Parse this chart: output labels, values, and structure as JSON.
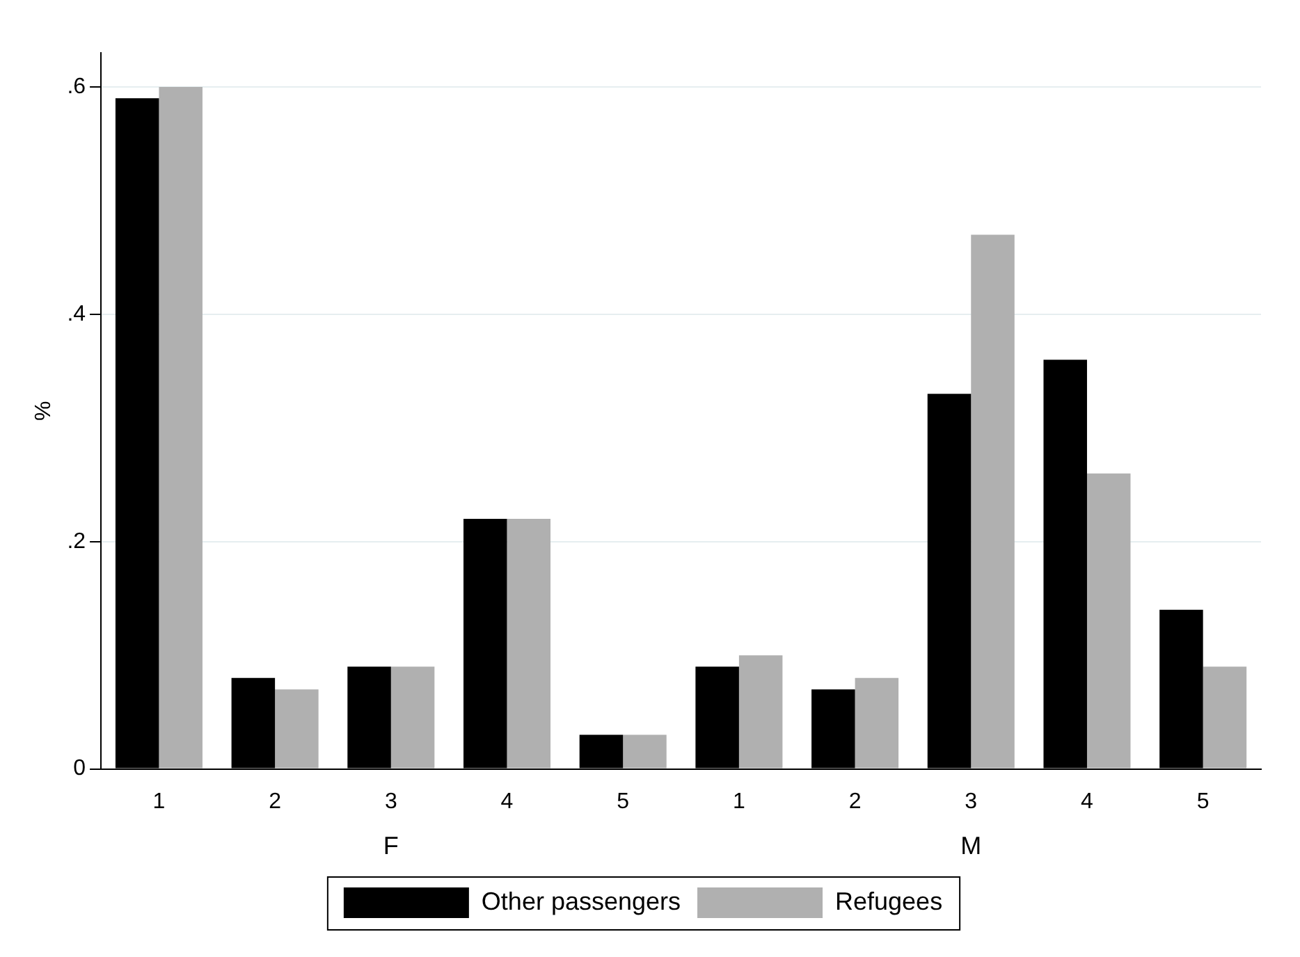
{
  "chart_data": {
    "type": "bar",
    "ylabel": "%",
    "categories": [
      "1",
      "2",
      "3",
      "4",
      "5",
      "1",
      "2",
      "3",
      "4",
      "5"
    ],
    "series": [
      {
        "name": "Other passengers",
        "color": "#000000",
        "values": [
          0.59,
          0.08,
          0.09,
          0.22,
          0.03,
          0.09,
          0.07,
          0.33,
          0.36,
          0.14
        ]
      },
      {
        "name": "Refugees",
        "color": "#b0b0b0",
        "values": [
          0.6,
          0.07,
          0.09,
          0.22,
          0.03,
          0.1,
          0.08,
          0.47,
          0.26,
          0.09
        ]
      }
    ],
    "ylim": [
      0,
      0.63
    ],
    "yticks": [
      0,
      {
        "value": 0.2,
        "label": ".2"
      },
      {
        "value": 0.4,
        "label": ".4"
      },
      {
        "value": 0.6,
        "label": ".6"
      }
    ],
    "annotations": [
      "F",
      "M"
    ],
    "grid": "y",
    "legend": "bottom"
  }
}
